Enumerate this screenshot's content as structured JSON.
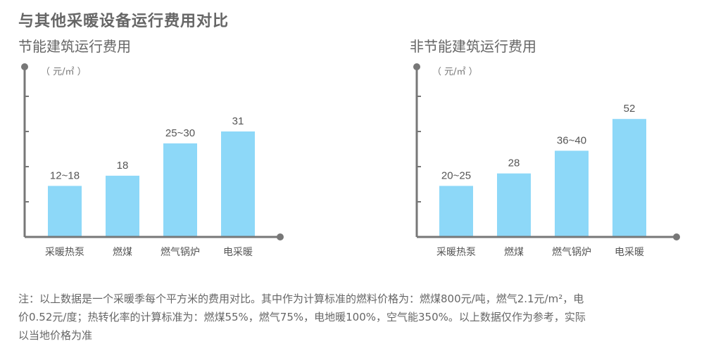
{
  "main_title": "与其他采暖设备运行费用对比",
  "unit_label": "（ 元/㎡ ）",
  "colors": {
    "bar": "#8dd8f8",
    "axis": "#777777",
    "text": "#555555"
  },
  "chart_data": [
    {
      "type": "bar",
      "title": "节能建筑运行费用",
      "categories": [
        "采暖热泵",
        "燃煤",
        "燃气锅炉",
        "电采暖"
      ],
      "values": [
        15,
        18,
        27.5,
        31
      ],
      "value_labels": [
        "12~18",
        "18",
        "25~30",
        "31"
      ],
      "ylim": [
        0,
        50
      ],
      "ylabel": "（ 元/㎡ ）"
    },
    {
      "type": "bar",
      "title": "非节能建筑运行费用",
      "categories": [
        "采暖热泵",
        "燃煤",
        "燃气锅炉",
        "电采暖"
      ],
      "values": [
        22.5,
        28,
        38,
        52
      ],
      "value_labels": [
        "20~25",
        "28",
        "36~40",
        "52"
      ],
      "ylim": [
        0,
        75
      ],
      "ylabel": "（ 元/㎡ ）"
    }
  ],
  "note_lines": [
    "注：以上数据是一个采暖季每个平方米的费用对比。其中作为计算标准的燃料价格为：燃煤800元/吨，燃气2.1元/m²，电",
    "价0.52元/度；热转化率的计算标准为：燃煤55%，燃气75%，电地暖100%，空气能350%。以上数据仅作为参考，实际",
    "以当地价格为准"
  ]
}
